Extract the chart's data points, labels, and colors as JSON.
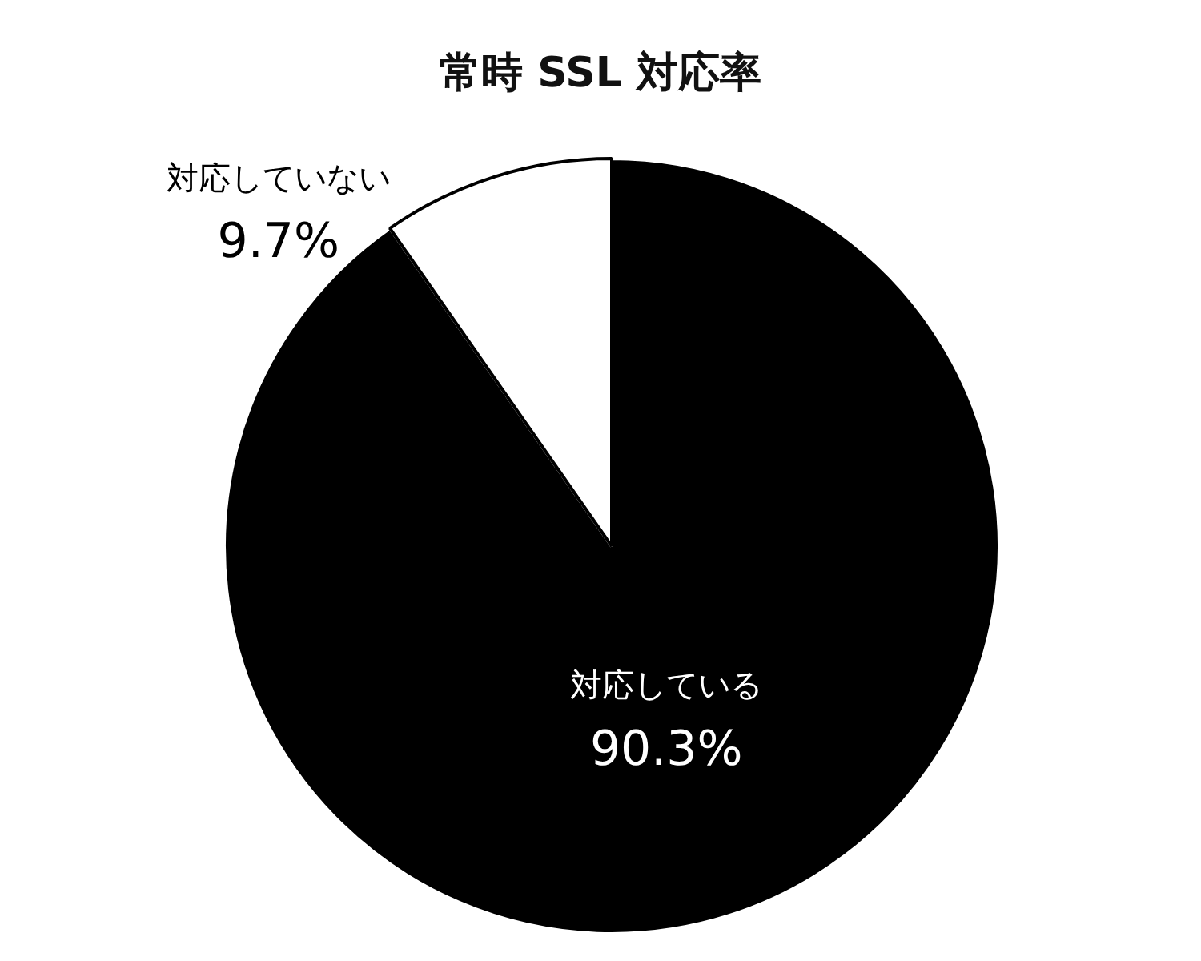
{
  "chart_data": {
    "type": "pie",
    "title": "常時 SSL 対応率",
    "categories": [
      "対応している",
      "対応していない"
    ],
    "values": [
      90.3,
      9.7
    ],
    "colors": [
      "#000000",
      "#ffffff"
    ],
    "value_labels": [
      "90.3%",
      "9.7%"
    ],
    "legend": false
  }
}
